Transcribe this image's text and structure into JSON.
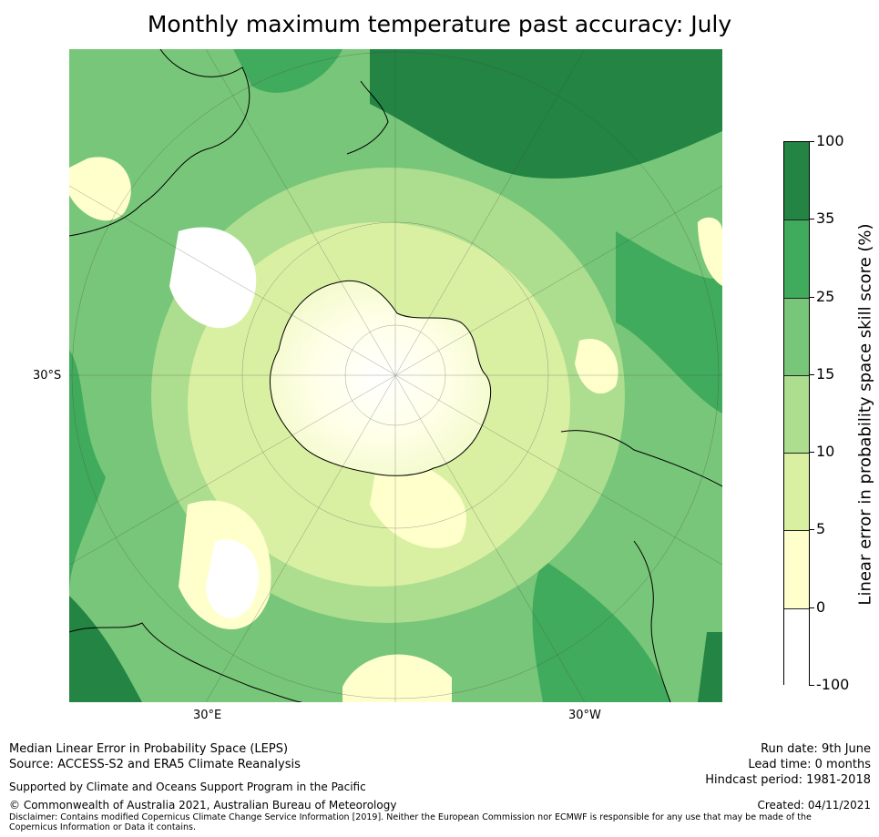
{
  "title": "Monthly maximum temperature past accuracy: July",
  "map": {
    "lat_label": "30°S",
    "lon_labels": [
      "30°E",
      "30°W"
    ]
  },
  "colorbar": {
    "label": "Linear error in probability space skill score (%)",
    "ticks": [
      "100",
      "35",
      "25",
      "15",
      "10",
      "5",
      "0",
      "-100"
    ],
    "colors": [
      "#238443",
      "#41ab5d",
      "#78c679",
      "#addd8e",
      "#d9f0a3",
      "#ffffcc",
      "#ffffff"
    ]
  },
  "footer": {
    "left_line1": "Median Linear Error in Probability Space (LEPS)",
    "left_line2": "Source: ACCESS-S2 and ERA5 Climate Reanalysis",
    "supported": "Supported by Climate and Oceans Support Program in the Pacific",
    "copyright": "© Commonwealth of Australia 2021, Australian Bureau of Meteorology",
    "disclaimer": "Disclaimer: Contains modified Copernicus Climate Change Service Information [2019]. Neither the European Commission nor ECMWF is responsible for any use that may be made of the Copernicus Information or Data it contains.",
    "run_date": "Run date: 9th June",
    "lead_time": "Lead time: 0 months",
    "hindcast": "Hindcast period: 1981-2018",
    "created": "Created: 04/11/2021"
  }
}
